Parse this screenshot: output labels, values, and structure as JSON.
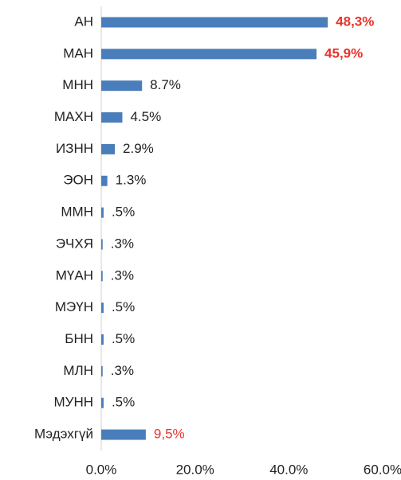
{
  "chart_data": {
    "type": "hbar",
    "categories": [
      "АН",
      "МАН",
      "МНН",
      "МАХН",
      "ИЗНН",
      "ЭОН",
      "ММН",
      "ЭЧХЯ",
      "МҮАН",
      "МЭҮН",
      "БНН",
      "МЛН",
      "МУНН",
      "Мэдэхгүй"
    ],
    "values": [
      48.3,
      45.9,
      8.7,
      4.5,
      2.9,
      1.3,
      0.5,
      0.3,
      0.3,
      0.5,
      0.5,
      0.3,
      0.5,
      9.5
    ],
    "value_labels": [
      "48,3%",
      "45,9%",
      "8.7%",
      "4.5%",
      "2.9%",
      "1.3%",
      ".5%",
      ".3%",
      ".3%",
      ".5%",
      ".5%",
      ".3%",
      ".5%",
      "9,5%"
    ],
    "value_label_colors": [
      "#e8332a",
      "#e8332a",
      "#222222",
      "#222222",
      "#222222",
      "#222222",
      "#222222",
      "#222222",
      "#222222",
      "#222222",
      "#222222",
      "#222222",
      "#222222",
      "#e8332a"
    ],
    "value_label_bold": [
      true,
      true,
      false,
      false,
      false,
      false,
      false,
      false,
      false,
      false,
      false,
      false,
      false,
      false
    ],
    "color": "#4a7ebb",
    "xlim": [
      0,
      60
    ],
    "xticks": [
      {
        "value": 0,
        "label": "0.0%"
      },
      {
        "value": 20,
        "label": "20.0%"
      },
      {
        "value": 40,
        "label": "40.0%"
      },
      {
        "value": 60,
        "label": "60.0%"
      }
    ]
  }
}
